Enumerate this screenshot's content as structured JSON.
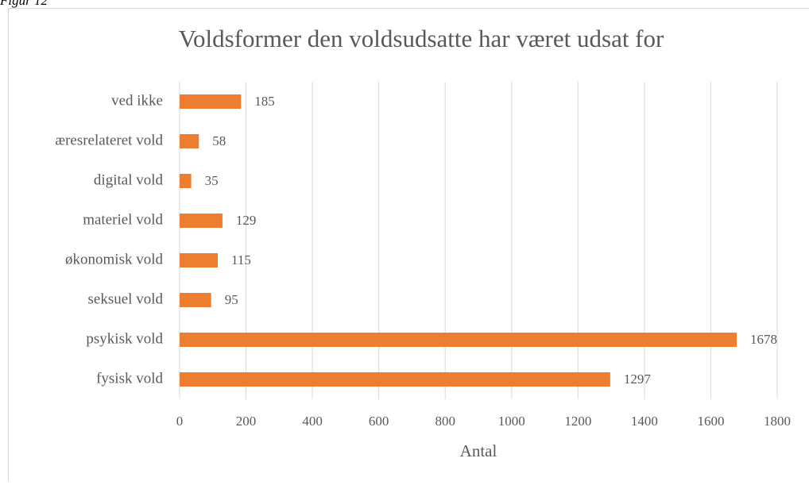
{
  "caption": "Figur 12",
  "chart_data": {
    "type": "bar",
    "orientation": "horizontal",
    "title": "Voldsformer den voldsudsatte har været udsat for",
    "categories": [
      "ved ikke",
      "æresrelateret vold",
      "digital vold",
      "materiel vold",
      "økonomisk vold",
      "seksuel vold",
      "psykisk vold",
      "fysisk vold"
    ],
    "values": [
      185,
      58,
      35,
      129,
      115,
      95,
      1678,
      1297
    ],
    "color": "#ed7d31",
    "xlabel": "Antal",
    "xlim": [
      0,
      1800
    ],
    "xticks": [
      0,
      200,
      400,
      600,
      800,
      1000,
      1200,
      1400,
      1600,
      1800
    ],
    "grid": true
  }
}
